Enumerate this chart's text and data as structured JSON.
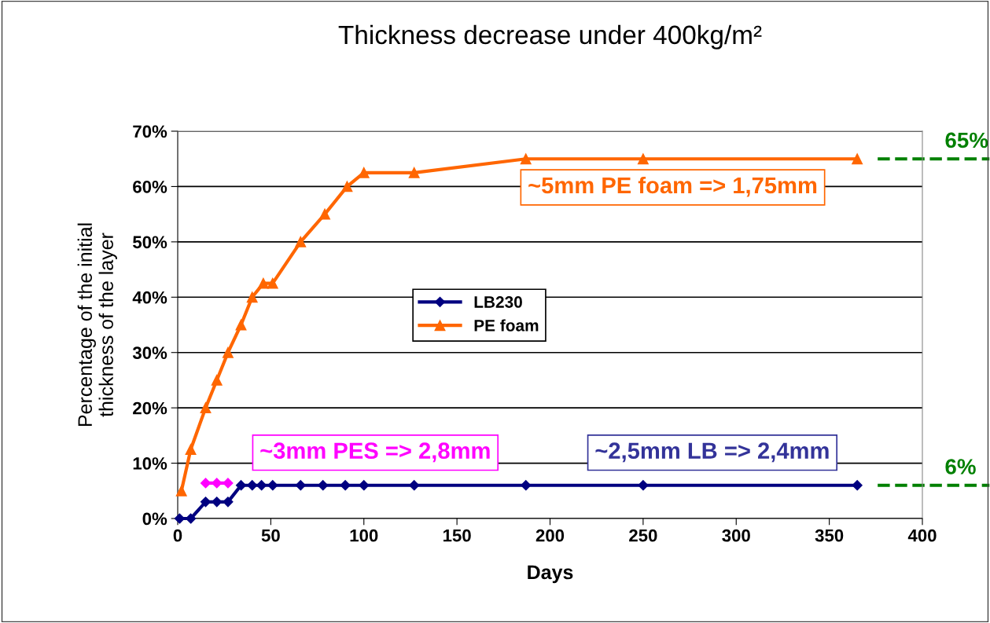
{
  "chart_data": {
    "type": "line",
    "title": "Thickness decrease under 400kg/m²",
    "xlabel": "Days",
    "ylabel": "Percentage of the initial\nthickness of the layer",
    "series": [
      {
        "name": "LB230",
        "color": "#000080",
        "marker": "diamond",
        "x": [
          1,
          7,
          15,
          21,
          27,
          34,
          40,
          45,
          51,
          66,
          78,
          90,
          100,
          127,
          187,
          250,
          365
        ],
        "values": [
          0,
          0,
          3,
          3,
          3,
          6,
          6,
          6,
          6,
          6,
          6,
          6,
          6,
          6,
          6,
          6,
          6
        ]
      },
      {
        "color": "#ff00ff",
        "marker": "diamond",
        "x": [
          15,
          21,
          27
        ],
        "values": [
          6.4,
          6.4,
          6.4
        ]
      },
      {
        "name": "PE foam",
        "color": "#ff6600",
        "marker": "triangle",
        "x": [
          2,
          7,
          15,
          21,
          27,
          34,
          40,
          46,
          51,
          66,
          79,
          91,
          100,
          127,
          187,
          250,
          365
        ],
        "values": [
          5,
          12.5,
          20,
          25,
          30,
          35,
          40,
          42.5,
          42.5,
          50,
          55,
          60,
          62.5,
          62.5,
          65,
          65,
          65
        ]
      }
    ],
    "annotations": [
      "~5mm PE foam => 1,75mm",
      "~3mm PES => 2,8mm",
      "~2,5mm LB => 2,4mm"
    ],
    "ref_lines": [
      {
        "axis": "y",
        "value": 65,
        "label": "65%",
        "color": "#008000",
        "line_style": "dashed"
      },
      {
        "axis": "y",
        "value": 6,
        "label": "6%",
        "color": "#008000",
        "line_style": "dashed"
      }
    ],
    "xlim": [
      0,
      400
    ],
    "xticks": [
      0,
      50,
      100,
      150,
      200,
      250,
      300,
      350,
      400
    ],
    "ylim": [
      0,
      70
    ],
    "yticks": [
      {
        "value": 0,
        "label": "0%"
      },
      {
        "value": 10,
        "label": "10%"
      },
      {
        "value": 20,
        "label": "20%"
      },
      {
        "value": 30,
        "label": "30%"
      },
      {
        "value": 40,
        "label": "40%"
      },
      {
        "value": 50,
        "label": "50%"
      },
      {
        "value": 60,
        "label": "60%"
      },
      {
        "value": 70,
        "label": "70%"
      }
    ],
    "grid": "y",
    "legend": "center",
    "line_style": "solid"
  }
}
